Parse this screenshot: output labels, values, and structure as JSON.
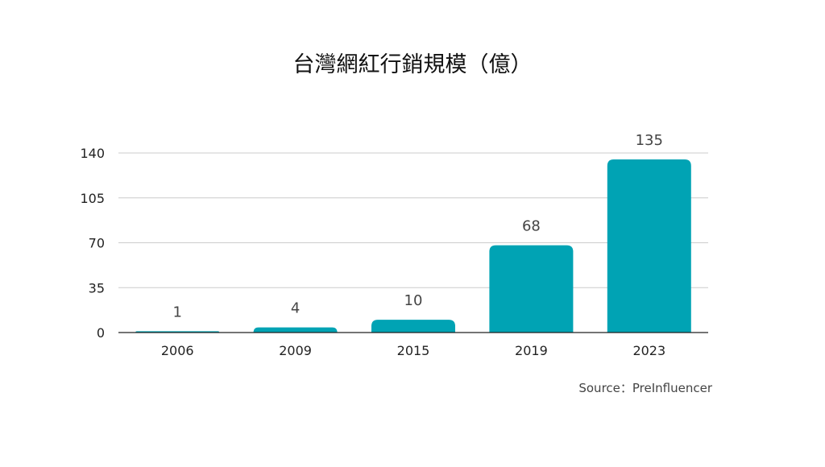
{
  "chart_data": {
    "type": "bar",
    "title": "台灣網紅行銷規模（億）",
    "xlabel": "",
    "ylabel": "",
    "categories": [
      "2006",
      "2009",
      "2015",
      "2019",
      "2023"
    ],
    "values": [
      1,
      4,
      10,
      68,
      135
    ],
    "data_labels": [
      "1",
      "4",
      "10",
      "68",
      "135"
    ],
    "ylim": [
      0,
      140
    ],
    "yticks": [
      0,
      35,
      70,
      105,
      140
    ],
    "ytick_labels": [
      "0",
      "35",
      "70",
      "105",
      "140"
    ],
    "grid": true,
    "bar_color": "#00A3B4",
    "gridline_color": "#cccccc",
    "axis_color": "#222222"
  },
  "source": "Source：PreInfluencer"
}
